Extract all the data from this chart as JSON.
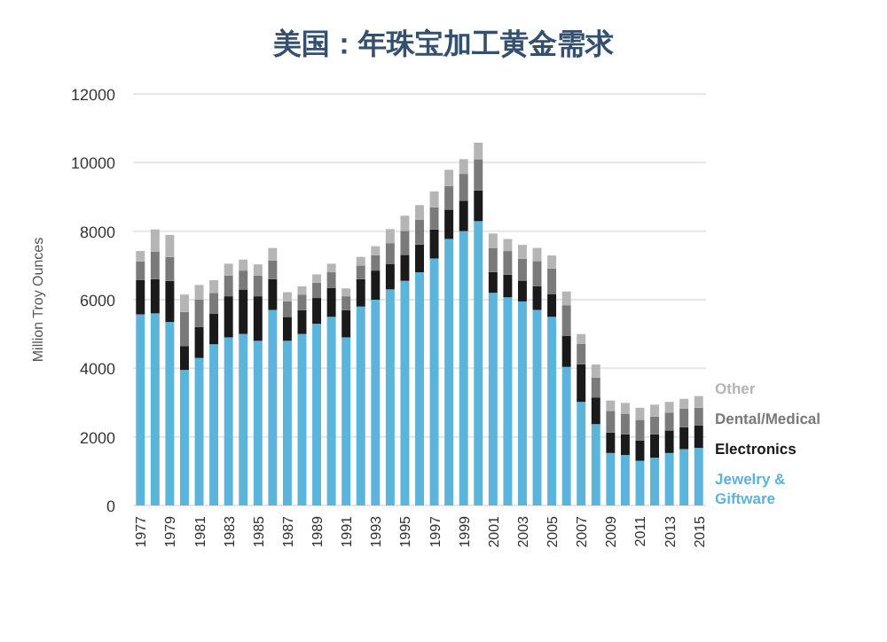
{
  "chart_data": {
    "type": "bar",
    "stacked": true,
    "title": "美国：年珠宝加工黄金需求",
    "ylabel": "Million Troy Ounces",
    "categories": [
      "1977",
      null,
      "1979",
      null,
      "1981",
      null,
      "1983",
      null,
      "1985",
      null,
      "1987",
      null,
      "1989",
      null,
      "1991",
      null,
      "1993",
      null,
      "1995",
      null,
      "1997",
      null,
      "1999",
      null,
      "2001",
      null,
      "2003",
      null,
      "2005",
      null,
      "2007",
      null,
      "2009",
      null,
      "2011",
      null,
      "2013",
      null,
      "2015"
    ],
    "series": [
      {
        "name": "Jewelry & Giftware",
        "color": "#5ab4dc",
        "values": [
          5570,
          5600,
          5350,
          3950,
          4300,
          4700,
          4900,
          5000,
          4800,
          5700,
          4800,
          5000,
          5300,
          5500,
          4900,
          5800,
          6000,
          6300,
          6550,
          6800,
          7200,
          7770,
          8000,
          8290,
          6200,
          6070,
          5950,
          5700,
          5500,
          4040,
          3020,
          2370,
          1530,
          1470,
          1300,
          1390,
          1530,
          1640,
          1680
        ]
      },
      {
        "name": "Electronics",
        "color": "#1a1a1a",
        "values": [
          1000,
          1000,
          1200,
          700,
          900,
          900,
          1200,
          1300,
          1300,
          900,
          700,
          700,
          750,
          850,
          800,
          800,
          850,
          750,
          760,
          810,
          850,
          860,
          890,
          900,
          610,
          660,
          610,
          690,
          670,
          900,
          1100,
          780,
          600,
          610,
          600,
          690,
          660,
          640,
          650
        ]
      },
      {
        "name": "Dental/Medical",
        "color": "#7a7a7a",
        "values": [
          550,
          800,
          700,
          1000,
          800,
          600,
          600,
          550,
          600,
          550,
          450,
          450,
          450,
          450,
          400,
          400,
          450,
          600,
          700,
          730,
          650,
          690,
          780,
          910,
          690,
          690,
          640,
          740,
          740,
          900,
          600,
          580,
          630,
          600,
          600,
          510,
          520,
          540,
          520
        ]
      },
      {
        "name": "Other",
        "color": "#b5b5b5",
        "values": [
          300,
          650,
          640,
          500,
          430,
          370,
          350,
          320,
          330,
          360,
          270,
          240,
          240,
          250,
          230,
          250,
          260,
          410,
          440,
          420,
          460,
          470,
          430,
          480,
          430,
          350,
          400,
          380,
          380,
          400,
          280,
          380,
          300,
          310,
          350,
          350,
          310,
          290,
          340
        ]
      }
    ],
    "ylim": [
      0,
      12000
    ],
    "yticks": [
      0,
      2000,
      4000,
      6000,
      8000,
      10000,
      12000
    ],
    "grid": "y",
    "legend": "right"
  }
}
